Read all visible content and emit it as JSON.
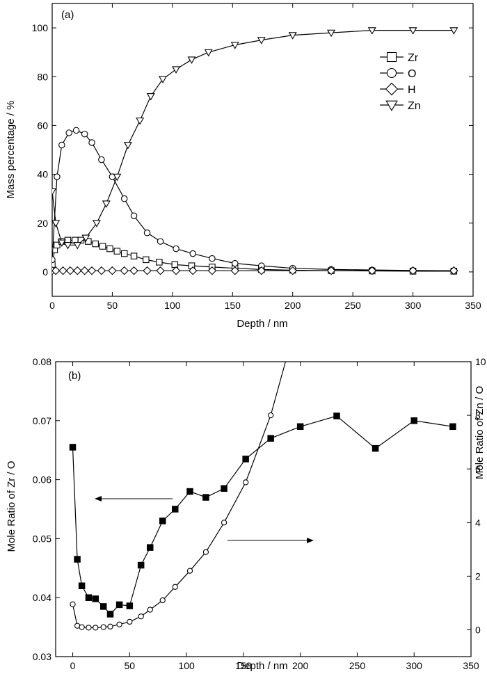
{
  "chart_data": [
    {
      "type": "line",
      "panel_label": "(a)",
      "xlabel": "Depth / nm",
      "ylabel": "Mass percentage / %",
      "xlim": [
        0,
        350
      ],
      "ylim": [
        -10,
        110
      ],
      "xticks": [
        0,
        50,
        100,
        150,
        200,
        250,
        300,
        350
      ],
      "yticks": [
        0,
        20,
        40,
        60,
        80,
        100
      ],
      "legend_position": "right",
      "series": [
        {
          "name": "Zr",
          "marker": "square",
          "x": [
            0,
            2,
            4,
            8,
            13,
            19,
            24,
            30,
            36,
            42,
            48,
            54,
            60,
            68,
            78,
            89,
            102,
            116,
            133,
            152,
            174,
            200,
            232,
            266,
            300,
            334
          ],
          "y": [
            3,
            9,
            11,
            12.5,
            13,
            13,
            13,
            12.5,
            11.5,
            10.5,
            9.5,
            8.5,
            7.5,
            6.5,
            5,
            4,
            3,
            2.5,
            2,
            1.5,
            1,
            0.7,
            0.5,
            0.4,
            0.3,
            0.3
          ]
        },
        {
          "name": "O",
          "marker": "circle",
          "x": [
            0,
            4,
            8,
            14,
            20,
            27,
            33,
            41,
            50,
            60,
            68,
            79,
            90,
            103,
            117,
            133,
            152,
            174,
            200,
            232,
            266,
            300,
            334
          ],
          "y": [
            5,
            39,
            52,
            57,
            58,
            56.5,
            53,
            46,
            39,
            30,
            23,
            16,
            12.5,
            9.5,
            7.5,
            5.5,
            3.5,
            2.5,
            1.5,
            1,
            0.8,
            0.6,
            0.5
          ]
        },
        {
          "name": "H",
          "marker": "diamond",
          "x": [
            0,
            3,
            9,
            15,
            21,
            27,
            33,
            41,
            50,
            60,
            68,
            79,
            90,
            103,
            117,
            133,
            152,
            174,
            200,
            232,
            266,
            300,
            334
          ],
          "y": [
            0.5,
            0.5,
            0.5,
            0.5,
            0.5,
            0.5,
            0.5,
            0.5,
            0.5,
            0.5,
            0.5,
            0.5,
            0.5,
            0.5,
            0.5,
            0.5,
            0.5,
            0.5,
            0.5,
            0.5,
            0.5,
            0.5,
            0.5
          ]
        },
        {
          "name": "Zn",
          "marker": "triangle-down",
          "x": [
            0,
            3,
            8,
            13,
            21,
            28,
            37,
            45,
            54,
            63,
            73,
            82,
            92,
            103,
            116,
            130,
            152,
            174,
            200,
            232,
            266,
            300,
            334
          ],
          "y": [
            33,
            20,
            12,
            11,
            11,
            14,
            20,
            28,
            39,
            52,
            62,
            72,
            79,
            83,
            87,
            90,
            93,
            95,
            97,
            98,
            99,
            99,
            99
          ]
        }
      ]
    },
    {
      "type": "line",
      "panel_label": "(b)",
      "xlabel": "Depth / nm",
      "ylabel": "Mole Ratio of Zr / O",
      "y2label": "Mole Ratio of Zn / O",
      "xlim": [
        -15,
        350
      ],
      "ylim": [
        0.03,
        0.08
      ],
      "y2lim": [
        -1,
        10
      ],
      "xticks": [
        0,
        50,
        100,
        150,
        200,
        250,
        300,
        350
      ],
      "yticks": [
        0.03,
        0.04,
        0.05,
        0.06,
        0.07,
        0.08
      ],
      "y2ticks": [
        0,
        2,
        4,
        6,
        8,
        10
      ],
      "series": [
        {
          "name": "Zr / O",
          "axis": "left",
          "marker": "filled-square",
          "x": [
            0,
            4,
            8,
            14,
            20,
            27,
            33,
            41,
            50,
            60,
            68,
            79,
            90,
            103,
            117,
            133,
            152,
            174,
            200,
            232,
            266,
            300,
            334
          ],
          "y": [
            0.0655,
            0.0465,
            0.042,
            0.04,
            0.0398,
            0.0385,
            0.0372,
            0.0388,
            0.0386,
            0.0455,
            0.0485,
            0.053,
            0.055,
            0.058,
            0.057,
            0.0585,
            0.0635,
            0.067,
            0.069,
            0.0708,
            0.0653,
            0.07,
            0.069
          ]
        },
        {
          "name": "Zn / O",
          "axis": "right",
          "marker": "circle",
          "x": [
            0,
            4,
            8,
            14,
            20,
            27,
            33,
            41,
            50,
            60,
            68,
            79,
            90,
            103,
            117,
            133,
            152,
            174
          ],
          "y": [
            0.95,
            0.15,
            0.1,
            0.08,
            0.08,
            0.1,
            0.12,
            0.2,
            0.3,
            0.5,
            0.75,
            1.1,
            1.6,
            2.2,
            2.9,
            4.0,
            5.5,
            8.0
          ]
        }
      ]
    }
  ]
}
